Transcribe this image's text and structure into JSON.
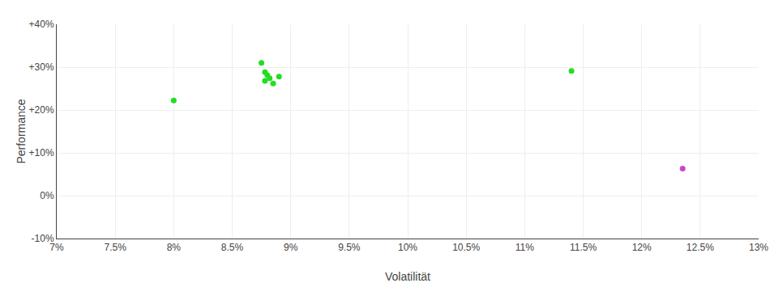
{
  "chart_data": {
    "type": "scatter",
    "xlabel": "Volatilität",
    "ylabel": "Performance",
    "xlim": [
      0.07,
      0.13
    ],
    "ylim": [
      -0.1,
      0.4
    ],
    "xticks": [
      {
        "value": 0.07,
        "label": "7%"
      },
      {
        "value": 0.075,
        "label": "7.5%"
      },
      {
        "value": 0.08,
        "label": "8%"
      },
      {
        "value": 0.085,
        "label": "8.5%"
      },
      {
        "value": 0.09,
        "label": "9%"
      },
      {
        "value": 0.095,
        "label": "9.5%"
      },
      {
        "value": 0.1,
        "label": "10%"
      },
      {
        "value": 0.105,
        "label": "10.5%"
      },
      {
        "value": 0.11,
        "label": "11%"
      },
      {
        "value": 0.115,
        "label": "11.5%"
      },
      {
        "value": 0.12,
        "label": "12%"
      },
      {
        "value": 0.125,
        "label": "12.5%"
      },
      {
        "value": 0.13,
        "label": "13%"
      }
    ],
    "yticks": [
      {
        "value": -0.1,
        "label": "-10%"
      },
      {
        "value": 0.0,
        "label": "0%"
      },
      {
        "value": 0.1,
        "label": "+10%"
      },
      {
        "value": 0.2,
        "label": "+20%"
      },
      {
        "value": 0.3,
        "label": "+30%"
      },
      {
        "value": 0.4,
        "label": "+40%"
      }
    ],
    "grid": true,
    "series": [
      {
        "color": "#22dd22",
        "x": [
          0.08,
          0.0875,
          0.0878,
          0.088,
          0.0882,
          0.0878,
          0.0885,
          0.089,
          0.114
        ],
        "values": [
          0.222,
          0.31,
          0.288,
          0.281,
          0.274,
          0.268,
          0.262,
          0.278,
          0.291
        ]
      },
      {
        "color": "#cc44cc",
        "x": [
          0.1235
        ],
        "values": [
          0.063
        ]
      }
    ]
  }
}
